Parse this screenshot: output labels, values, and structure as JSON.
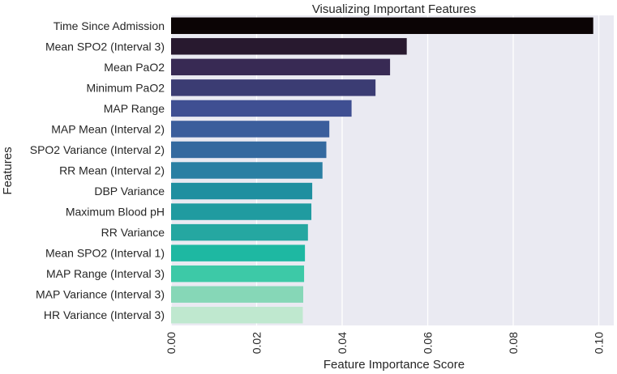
{
  "chart_data": {
    "type": "bar",
    "orientation": "horizontal",
    "title": "Visualizing Important Features",
    "xlabel": "Feature Importance Score",
    "ylabel": "Features",
    "xlim": [
      0.0,
      0.1035
    ],
    "xticks": [
      "0.00",
      "0.02",
      "0.04",
      "0.06",
      "0.08",
      "0.10"
    ],
    "grid": true,
    "background": "#eaeaf2",
    "categories": [
      "Time Since Admission",
      "Mean SPO2 (Interval 3)",
      "Mean PaO2",
      "Minimum PaO2",
      "MAP Range",
      "MAP Mean (Interval 2)",
      "SPO2 Variance (Interval 2)",
      "RR Mean (Interval 2)",
      "DBP Variance",
      "Maximum Blood pH",
      "RR Variance",
      "Mean SPO2 (Interval 1)",
      "MAP Range (Interval 3)",
      "MAP Variance (Interval 3)",
      "HR Variance (Interval 3)"
    ],
    "values": [
      0.0987,
      0.0551,
      0.0512,
      0.0478,
      0.0422,
      0.037,
      0.0363,
      0.0354,
      0.033,
      0.0328,
      0.032,
      0.0313,
      0.0311,
      0.0309,
      0.0308
    ],
    "colors": [
      "#0b0405",
      "#28192f",
      "#382a54",
      "#3b3c73",
      "#3f4f92",
      "#3b5e9c",
      "#34699f",
      "#2a7fa3",
      "#1f8fa0",
      "#209ba0",
      "#25a7a1",
      "#1eb8a2",
      "#3dc9a7",
      "#86d7b7",
      "#bfe8cf"
    ]
  }
}
